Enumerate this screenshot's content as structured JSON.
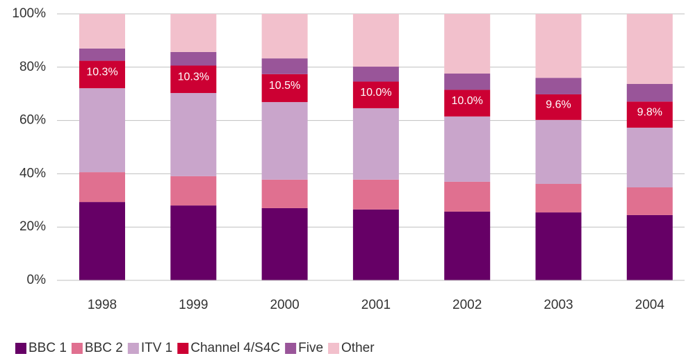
{
  "chart_data": {
    "type": "stacked_bar",
    "categories": [
      "1998",
      "1999",
      "2000",
      "2001",
      "2002",
      "2003",
      "2004"
    ],
    "series": [
      {
        "name": "BBC 1",
        "color": "#660066",
        "values": [
          29.4,
          28.1,
          27.1,
          26.6,
          25.8,
          25.5,
          24.5
        ]
      },
      {
        "name": "BBC 2",
        "color": "#e07090",
        "values": [
          11.2,
          11.0,
          10.7,
          11.2,
          11.2,
          10.7,
          10.4
        ]
      },
      {
        "name": "ITV 1",
        "color": "#c9a5cb",
        "values": [
          31.5,
          31.2,
          29.1,
          26.8,
          24.5,
          24.0,
          22.4
        ]
      },
      {
        "name": "Channel 4/S4C",
        "color": "#cc0033",
        "values": [
          10.3,
          10.3,
          10.5,
          10.0,
          10.0,
          9.6,
          9.8
        ],
        "value_labels": [
          "10.3%",
          "10.3%",
          "10.5%",
          "10.0%",
          "10.0%",
          "9.6%",
          "9.8%"
        ]
      },
      {
        "name": "Five",
        "color": "#995599",
        "values": [
          4.6,
          5.1,
          5.9,
          5.6,
          6.1,
          6.2,
          6.6
        ]
      },
      {
        "name": "Other",
        "color": "#f2c0cc",
        "values": [
          13.0,
          14.3,
          16.7,
          19.8,
          22.4,
          24.0,
          26.3
        ]
      }
    ],
    "ylim": [
      0,
      100
    ],
    "yticks": [
      {
        "value": 0,
        "label": "0%"
      },
      {
        "value": 20,
        "label": "20%"
      },
      {
        "value": 40,
        "label": "40%"
      },
      {
        "value": 60,
        "label": "60%"
      },
      {
        "value": 80,
        "label": "80%"
      },
      {
        "value": 100,
        "label": "100%"
      }
    ],
    "grid": true,
    "legend": "bottom"
  }
}
